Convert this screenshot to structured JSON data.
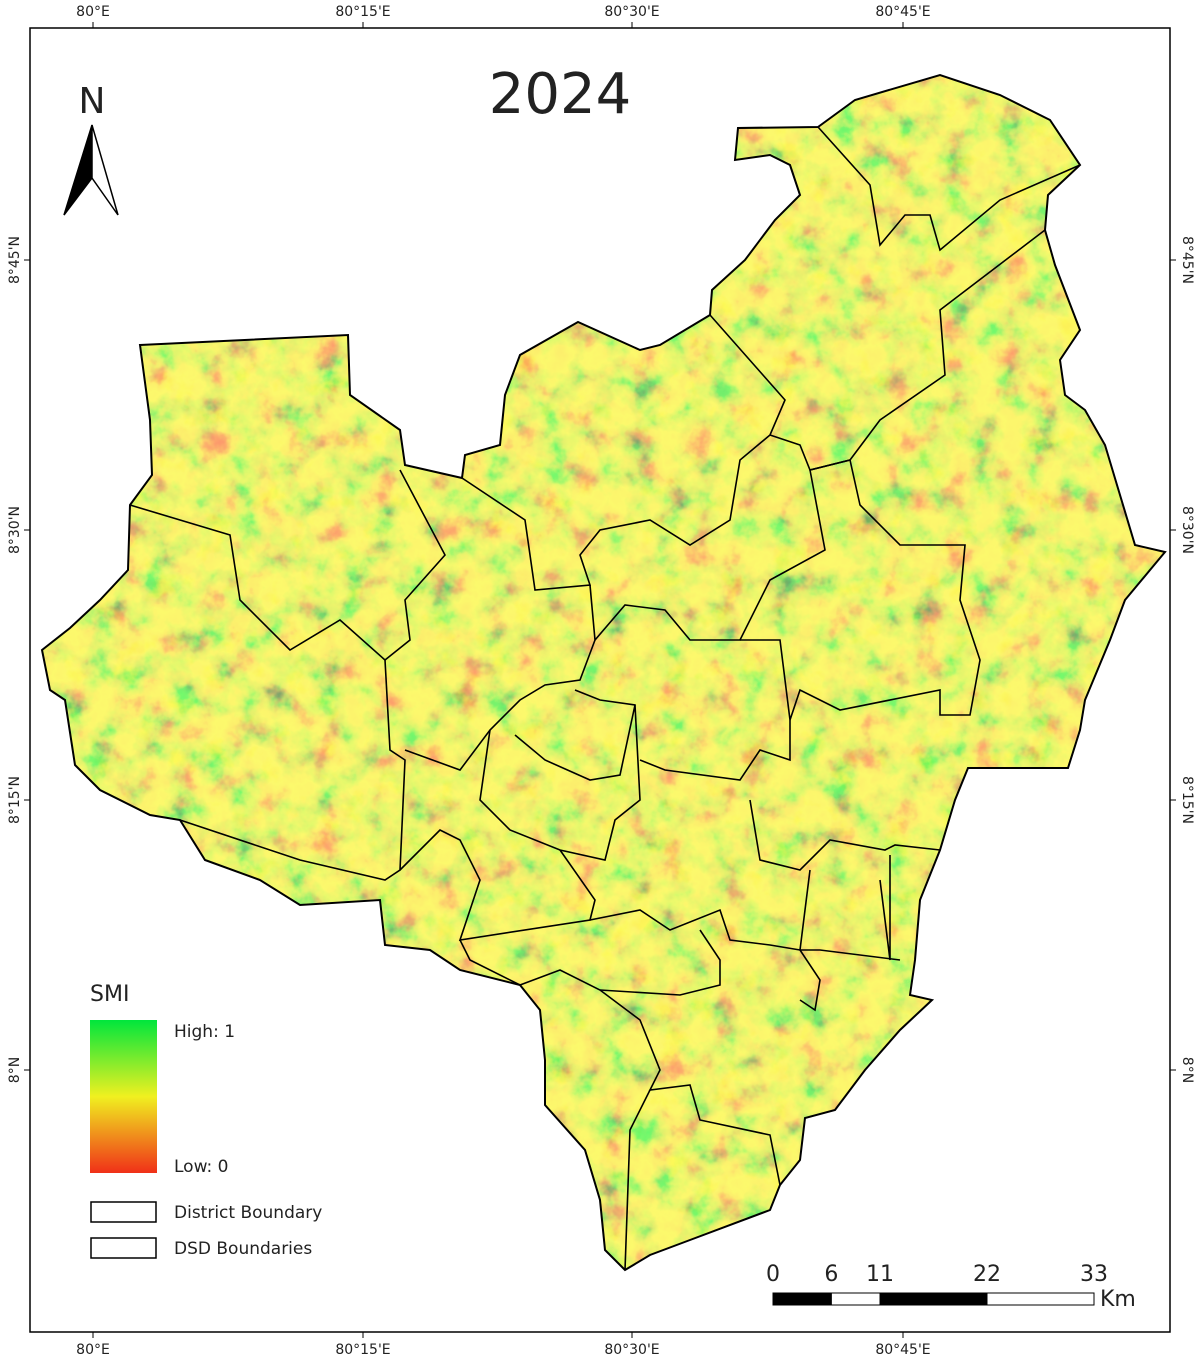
{
  "map": {
    "title": "2024",
    "north_label": "N",
    "graticule": {
      "top": [
        "80°E",
        "80°15'E",
        "80°30'E",
        "80°45'E"
      ],
      "bottom": [
        "80°E",
        "80°15'E",
        "80°30'E",
        "80°45'E"
      ],
      "left": [
        "8°45'N",
        "8°30'N",
        "8°15'N",
        "8°N"
      ],
      "right": [
        "8°45'N",
        "8°30'N",
        "8°15'N",
        "8°N"
      ]
    },
    "legend": {
      "title": "SMI",
      "high": "High: 1",
      "low": "Low: 0",
      "items": [
        "District Boundary",
        "DSD Boundaries"
      ]
    },
    "scale_bar": {
      "ticks": [
        0,
        6,
        11,
        22,
        33
      ],
      "unit": "Km"
    }
  }
}
